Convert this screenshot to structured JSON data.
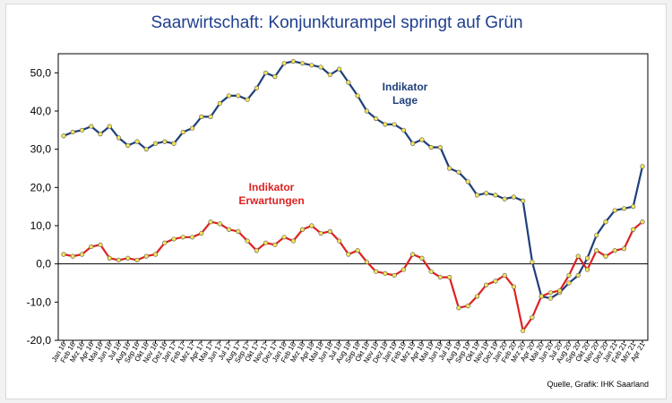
{
  "chart_data": {
    "type": "line",
    "title": "Saarwirtschaft: Konjunkturampel springt auf Grün",
    "source": "Quelle, Grafik: IHK Saarland",
    "ylim": [
      -20,
      55
    ],
    "yticks": [
      -20,
      -10,
      0,
      10,
      20,
      30,
      40,
      50
    ],
    "ytick_labels": [
      "-20,0",
      "-10,0",
      "0,0",
      "10,0",
      "20,0",
      "30,0",
      "40,0",
      "50,0"
    ],
    "grid": false,
    "x": [
      "Jan 16",
      "Feb 16",
      "Mrz 16",
      "Apr 16",
      "Mai 16",
      "Jun 16",
      "Jul 16",
      "Aug 16",
      "Sep 16",
      "Okt 16",
      "Nov 16",
      "Dez 16",
      "Jan 17",
      "Feb 17",
      "Mrz 17",
      "Apr 17",
      "Mai 17",
      "Jun 17",
      "Jul 17",
      "Aug 17",
      "Sep 17",
      "Okt 17",
      "Nov 17",
      "Dez 17",
      "Jan 18",
      "Feb 18",
      "Mrz 18",
      "Apr 18",
      "Mai 18",
      "Jun 18",
      "Jul 18",
      "Aug 18",
      "Sep 18",
      "Okt 18",
      "Nov 18",
      "Dez 18",
      "Jan 19",
      "Feb 19",
      "Mrz 19",
      "Apr 19",
      "Mai 19",
      "Jun 19",
      "Jul 19",
      "Aug 19",
      "Sep 19",
      "Okt 19",
      "Nov 19",
      "Dez 19",
      "Jan 20",
      "Feb 20",
      "Mrz 20",
      "Apr 20",
      "Mai 20",
      "Jun 20",
      "Jul 20",
      "Aug 20",
      "Sep 20",
      "Okt 20",
      "Nov 20",
      "Dez 20",
      "Jan 21",
      "Feb 21",
      "Mrz 21",
      "Apr 21"
    ],
    "series": [
      {
        "name": "Indikator Lage",
        "label_lines": [
          "Indikator",
          "Lage"
        ],
        "color": "#1f3f7a",
        "values": [
          33.5,
          34.5,
          35.0,
          36.0,
          34.0,
          36.0,
          33.0,
          31.0,
          32.0,
          30.0,
          31.5,
          32.0,
          31.5,
          34.5,
          35.5,
          38.5,
          38.5,
          42.0,
          44.0,
          44.0,
          43.0,
          46.0,
          50.0,
          49.0,
          52.5,
          53.0,
          52.5,
          52.0,
          51.5,
          49.5,
          51.0,
          47.5,
          44.0,
          40.0,
          38.0,
          36.5,
          36.5,
          35.0,
          31.5,
          32.5,
          30.5,
          30.5,
          25.0,
          24.0,
          21.5,
          18.0,
          18.5,
          18.0,
          17.0,
          17.5,
          16.5,
          0.5,
          -8.5,
          -9.0,
          -7.5,
          -5.0,
          -3.0,
          1.5,
          7.5,
          11.0,
          14.0,
          14.5,
          15.0,
          25.5
        ]
      },
      {
        "name": "Indikator Erwartungen",
        "label_lines": [
          "Indikator",
          "Erwartungen"
        ],
        "color": "#dd2222",
        "values": [
          2.5,
          2.0,
          2.5,
          4.5,
          5.0,
          1.5,
          1.0,
          1.5,
          1.0,
          2.0,
          2.5,
          5.5,
          6.5,
          7.0,
          7.0,
          8.0,
          11.0,
          10.5,
          9.0,
          8.5,
          6.0,
          3.5,
          5.5,
          5.0,
          7.0,
          6.0,
          9.0,
          10.0,
          8.0,
          8.5,
          6.0,
          2.5,
          3.5,
          0.5,
          -2.0,
          -2.5,
          -3.0,
          -1.5,
          2.5,
          1.5,
          -2.0,
          -3.5,
          -3.5,
          -11.5,
          -11.0,
          -8.5,
          -5.5,
          -4.5,
          -3.0,
          -6.0,
          -17.5,
          -14.0,
          -8.5,
          -7.5,
          -7.0,
          -3.0,
          2.0,
          -1.5,
          3.5,
          2.0,
          3.5,
          4.0,
          9.0,
          11.0
        ]
      }
    ]
  }
}
